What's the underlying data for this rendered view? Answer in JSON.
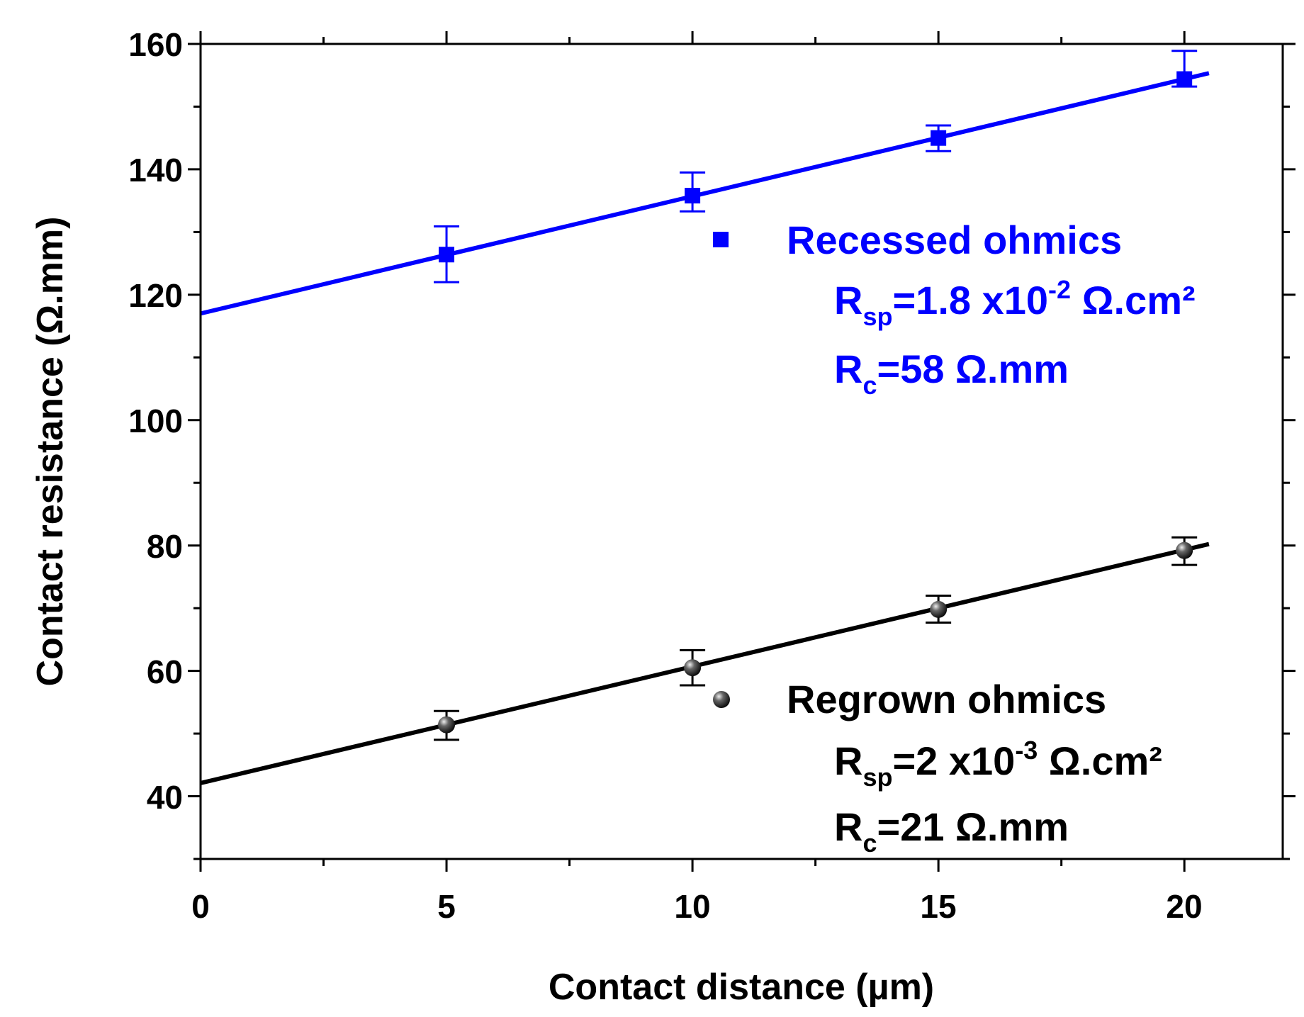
{
  "chart_data": {
    "type": "scatter",
    "xlabel": "Contact distance (µm)",
    "ylabel": "Contact resistance (Ω.mm)",
    "xlim": [
      0,
      22
    ],
    "ylim": [
      30,
      160
    ],
    "x_ticks": [
      0,
      5,
      10,
      15,
      20
    ],
    "y_ticks": [
      40,
      60,
      80,
      100,
      120,
      140,
      160
    ],
    "x_tick_labels": [
      "0",
      "5",
      "10",
      "15",
      "20"
    ],
    "y_tick_labels": [
      "40",
      "60",
      "80",
      "100",
      "120",
      "140",
      "160"
    ],
    "grid": false,
    "legend_position": "inside right",
    "series": [
      {
        "name": "Recessed ohmics",
        "color": "#0000ff",
        "marker": "square",
        "x": [
          5,
          10,
          15,
          20
        ],
        "y": [
          126.4,
          135.8,
          145.0,
          154.4
        ],
        "err_low": [
          4.4,
          2.5,
          2.1,
          1.2
        ],
        "err_high": [
          4.5,
          3.7,
          2.0,
          4.5
        ],
        "fit": {
          "slope": 1.87,
          "intercept": 117.0
        }
      },
      {
        "name": "Regrown ohmics",
        "color": "#000000",
        "marker": "sphere",
        "x": [
          5,
          10,
          15,
          20
        ],
        "y": [
          51.4,
          60.5,
          69.8,
          79.2
        ],
        "err_low": [
          2.4,
          2.8,
          2.1,
          2.3
        ],
        "err_high": [
          2.2,
          2.8,
          2.2,
          2.1
        ],
        "fit": {
          "slope": 1.86,
          "intercept": 42.1
        }
      }
    ],
    "annotations": [
      {
        "series": 0,
        "rsp": {
          "main": "R",
          "sub": "sp",
          "eq": "=1.8 x10",
          "exp": "-2",
          "unit": " Ω.cm²"
        },
        "rc": {
          "main": "R",
          "sub": "c",
          "eq": "=58 Ω.mm"
        }
      },
      {
        "series": 1,
        "rsp": {
          "main": "R",
          "sub": "sp",
          "eq": "=2 x10",
          "exp": "-3",
          "unit": " Ω.cm²"
        },
        "rc": {
          "main": "R",
          "sub": "c",
          "eq": "=21 Ω.mm"
        }
      }
    ]
  }
}
